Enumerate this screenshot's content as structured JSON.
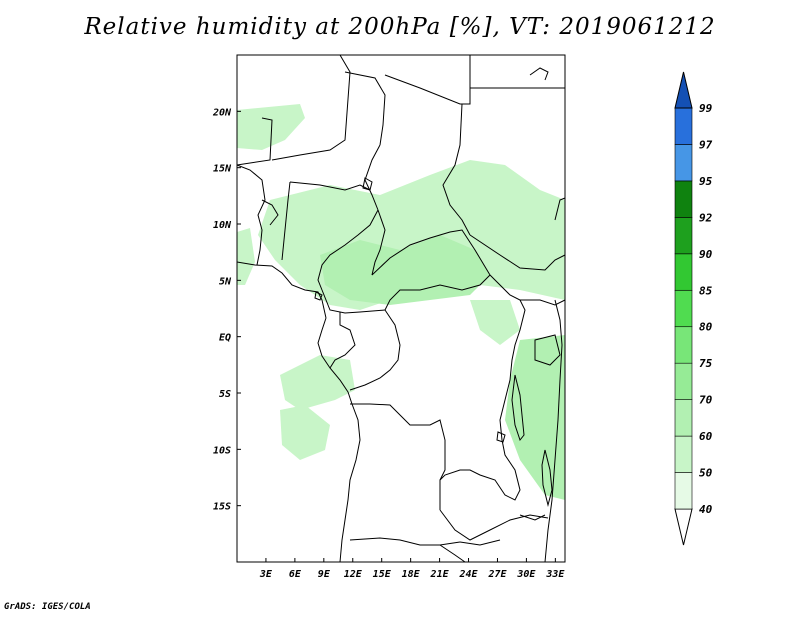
{
  "title": "Relative humidity at 200hPa [%], VT: 2019061212",
  "credit": "GrADS: IGES/COLA",
  "map": {
    "lon_range": [
      0,
      34
    ],
    "lat_range": [
      -20,
      25
    ],
    "lat_ticks": [
      {
        "value": 20,
        "label": "20N"
      },
      {
        "value": 15,
        "label": "15N"
      },
      {
        "value": 10,
        "label": "10N"
      },
      {
        "value": 5,
        "label": "5N"
      },
      {
        "value": 0,
        "label": "EQ"
      },
      {
        "value": -5,
        "label": "5S"
      },
      {
        "value": -10,
        "label": "10S"
      },
      {
        "value": -15,
        "label": "15S"
      }
    ],
    "lon_ticks": [
      {
        "value": 3,
        "label": "3E"
      },
      {
        "value": 6,
        "label": "6E"
      },
      {
        "value": 9,
        "label": "9E"
      },
      {
        "value": 12,
        "label": "12E"
      },
      {
        "value": 15,
        "label": "15E"
      },
      {
        "value": 18,
        "label": "18E"
      },
      {
        "value": 21,
        "label": "21E"
      },
      {
        "value": 24,
        "label": "24E"
      },
      {
        "value": 27,
        "label": "27E"
      },
      {
        "value": 30,
        "label": "30E"
      },
      {
        "value": 33,
        "label": "33E"
      }
    ]
  },
  "colorbar": {
    "levels": [
      "40",
      "50",
      "60",
      "70",
      "75",
      "80",
      "85",
      "90",
      "92",
      "95",
      "97",
      "99"
    ],
    "colors": [
      "#ffffff",
      "#e6fae6",
      "#c8f5c8",
      "#b2f0b2",
      "#96eb96",
      "#78e678",
      "#50dc50",
      "#32c832",
      "#1ea01e",
      "#0f820f",
      "#4696e6",
      "#2870dc",
      "#1450b4"
    ]
  },
  "colors": {
    "land_line": "#000000",
    "humid_fill": "#c8f5c8",
    "humid_fill_strong": "#b2f0b2"
  }
}
